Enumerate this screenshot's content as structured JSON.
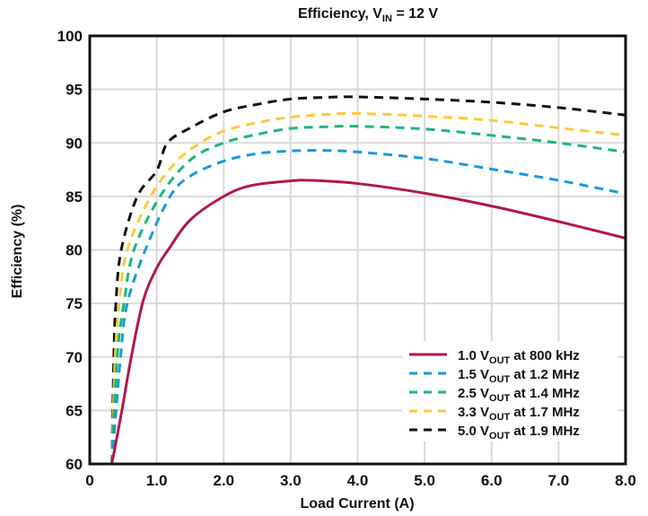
{
  "chart_data": {
    "type": "line",
    "title": "Efficiency, V",
    "title_subscript": "IN",
    "title_suffix": " = 12 V",
    "xlabel": "Load Current (A)",
    "ylabel": "Efficiency (%)",
    "xlim": [
      0,
      8.0
    ],
    "ylim": [
      60,
      100
    ],
    "xticks": [
      0,
      1.0,
      2.0,
      3.0,
      4.0,
      5.0,
      6.0,
      7.0,
      8.0
    ],
    "xtick_labels": [
      "0",
      "1.0",
      "2.0",
      "3.0",
      "4.0",
      "5.0",
      "6.0",
      "7.0",
      "8.0"
    ],
    "yticks": [
      60,
      65,
      70,
      75,
      80,
      85,
      90,
      95,
      100
    ],
    "ytick_labels": [
      "60",
      "65",
      "70",
      "75",
      "80",
      "85",
      "90",
      "95",
      "100"
    ],
    "grid": true,
    "legend_position": "bottom-right",
    "series": [
      {
        "name": "1.0 VOUT at 800 kHz",
        "label_prefix": "1.0 V",
        "label_sub": "OUT",
        "label_suffix": " at 800 kHz",
        "color": "#b0184a",
        "style": "solid",
        "x": [
          0.33,
          0.48,
          0.62,
          0.8,
          1.0,
          1.17,
          1.5,
          2.0,
          2.4,
          3.0,
          3.3,
          4.0,
          5.0,
          6.0,
          7.0,
          8.0
        ],
        "y": [
          60,
          65,
          70,
          75.3,
          78.3,
          80.0,
          82.8,
          85.0,
          86.0,
          86.45,
          86.5,
          86.2,
          85.3,
          84.1,
          82.65,
          81.1
        ]
      },
      {
        "name": "1.5 VOUT at 1.2 MHz",
        "label_prefix": "1.5 V",
        "label_sub": "OUT",
        "label_suffix": " at 1.2 MHz",
        "color": "#1a9ad6",
        "style": "dashed",
        "x": [
          0.33,
          0.46,
          0.56,
          0.83,
          1.2,
          1.5,
          2.0,
          2.5,
          3.0,
          3.5,
          4.0,
          5.0,
          6.0,
          7.0,
          8.0
        ],
        "y": [
          60,
          70,
          75,
          80,
          85,
          86.9,
          88.3,
          89.0,
          89.25,
          89.3,
          89.15,
          88.55,
          87.55,
          86.5,
          85.25
        ]
      },
      {
        "name": "2.5 VOUT at 1.4 MHz",
        "label_prefix": "2.5 V",
        "label_sub": "OUT",
        "label_suffix": " at 1.4 MHz",
        "color": "#1ab77a",
        "style": "dashed",
        "x": [
          0.33,
          0.41,
          0.51,
          0.66,
          1.05,
          1.5,
          2.0,
          2.5,
          3.0,
          3.5,
          4.0,
          5.0,
          6.0,
          7.0,
          8.0
        ],
        "y": [
          60,
          70,
          75,
          80,
          85,
          88.4,
          90.0,
          90.8,
          91.35,
          91.5,
          91.55,
          91.3,
          90.7,
          90.0,
          89.15
        ]
      },
      {
        "name": "3.3 VOUT at 1.7 MHz",
        "label_prefix": "3.3 V",
        "label_sub": "OUT",
        "label_suffix": " at 1.7 MHz",
        "color": "#ffc93c",
        "style": "dashed",
        "x": [
          0.33,
          0.38,
          0.44,
          0.56,
          0.91,
          1.3,
          1.65,
          2.0,
          2.5,
          3.0,
          3.5,
          4.0,
          5.0,
          6.0,
          7.0,
          8.0
        ],
        "y": [
          60,
          70,
          75,
          80,
          85,
          88.3,
          90.0,
          91.1,
          91.9,
          92.4,
          92.65,
          92.75,
          92.5,
          92.1,
          91.4,
          90.7
        ]
      },
      {
        "name": "5.0 VOUT at 1.9 MHz",
        "label_prefix": "5.0 V",
        "label_sub": "OUT",
        "label_suffix": " at 1.9 MHz",
        "color": "#111111",
        "style": "dashed",
        "x": [
          0.33,
          0.36,
          0.39,
          0.47,
          0.71,
          1.0,
          1.16,
          1.5,
          2.0,
          2.5,
          3.0,
          3.5,
          4.0,
          5.0,
          6.0,
          7.0,
          8.0
        ],
        "y": [
          60,
          70,
          75,
          80,
          85,
          87.4,
          90.0,
          91.4,
          92.9,
          93.6,
          94.1,
          94.25,
          94.3,
          94.1,
          93.8,
          93.3,
          92.6
        ]
      }
    ]
  }
}
